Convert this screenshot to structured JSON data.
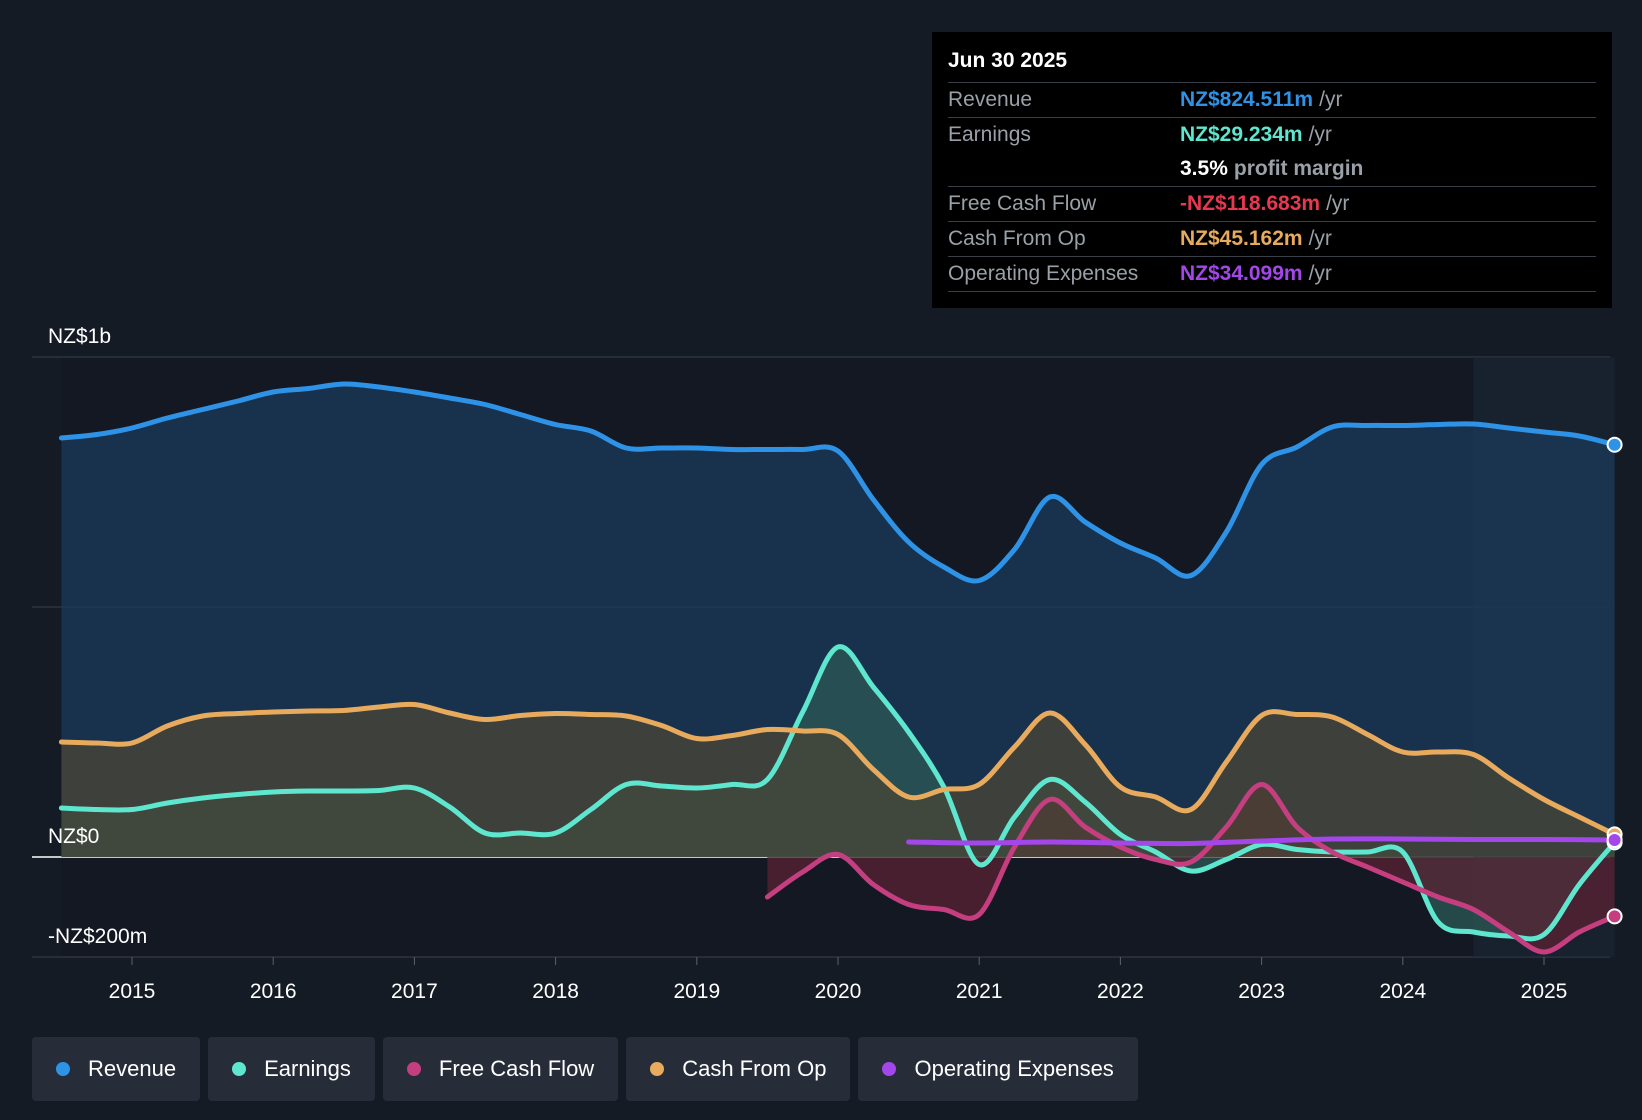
{
  "chart_data": {
    "type": "area",
    "title": "",
    "xlabel": "",
    "ylabel": "",
    "ylim": [
      -200,
      1000
    ],
    "y_axis_labels": [
      {
        "value": 1000,
        "label": "NZ$1b"
      },
      {
        "value": 0,
        "label": "NZ$0"
      },
      {
        "value": -200,
        "label": "-NZ$200m"
      }
    ],
    "x_ticks": [
      "2015",
      "2016",
      "2017",
      "2018",
      "2019",
      "2020",
      "2021",
      "2022",
      "2023",
      "2024",
      "2025"
    ],
    "xlim": [
      2014.25,
      2025.5
    ],
    "forecast_start": 2024.5,
    "series": [
      {
        "name": "Revenue",
        "color": "#2e93e6",
        "fill": "#1b3b5c",
        "points": [
          [
            2014.5,
            838
          ],
          [
            2014.75,
            845
          ],
          [
            2015.0,
            858
          ],
          [
            2015.25,
            878
          ],
          [
            2015.5,
            895
          ],
          [
            2015.75,
            912
          ],
          [
            2016.0,
            930
          ],
          [
            2016.25,
            937
          ],
          [
            2016.5,
            946
          ],
          [
            2016.75,
            940
          ],
          [
            2017.0,
            930
          ],
          [
            2017.25,
            918
          ],
          [
            2017.5,
            905
          ],
          [
            2017.75,
            885
          ],
          [
            2018.0,
            865
          ],
          [
            2018.25,
            852
          ],
          [
            2018.5,
            818
          ],
          [
            2018.75,
            818
          ],
          [
            2019.0,
            818
          ],
          [
            2019.25,
            815
          ],
          [
            2019.5,
            815
          ],
          [
            2019.75,
            815
          ],
          [
            2020.0,
            812
          ],
          [
            2020.25,
            715
          ],
          [
            2020.5,
            630
          ],
          [
            2020.75,
            580
          ],
          [
            2021.0,
            553
          ],
          [
            2021.25,
            615
          ],
          [
            2021.5,
            720
          ],
          [
            2021.75,
            670
          ],
          [
            2022.0,
            628
          ],
          [
            2022.25,
            598
          ],
          [
            2022.5,
            563
          ],
          [
            2022.75,
            650
          ],
          [
            2023.0,
            785
          ],
          [
            2023.25,
            820
          ],
          [
            2023.5,
            860
          ],
          [
            2023.75,
            863
          ],
          [
            2024.0,
            863
          ],
          [
            2024.25,
            865
          ],
          [
            2024.5,
            866
          ],
          [
            2024.75,
            858
          ],
          [
            2025.0,
            850
          ],
          [
            2025.25,
            842
          ],
          [
            2025.5,
            824.5
          ]
        ]
      },
      {
        "name": "Earnings",
        "color": "#5ee6cf",
        "fill": "#2c5a55",
        "points": [
          [
            2014.5,
            98
          ],
          [
            2014.75,
            95
          ],
          [
            2015.0,
            95
          ],
          [
            2015.25,
            108
          ],
          [
            2015.5,
            118
          ],
          [
            2015.75,
            125
          ],
          [
            2016.0,
            130
          ],
          [
            2016.25,
            132
          ],
          [
            2016.5,
            132
          ],
          [
            2016.75,
            133
          ],
          [
            2017.0,
            138
          ],
          [
            2017.25,
            100
          ],
          [
            2017.5,
            48
          ],
          [
            2017.75,
            48
          ],
          [
            2018.0,
            48
          ],
          [
            2018.25,
            95
          ],
          [
            2018.5,
            145
          ],
          [
            2018.75,
            142
          ],
          [
            2019.0,
            138
          ],
          [
            2019.25,
            145
          ],
          [
            2019.5,
            155
          ],
          [
            2019.75,
            290
          ],
          [
            2020.0,
            420
          ],
          [
            2020.25,
            340
          ],
          [
            2020.5,
            250
          ],
          [
            2020.75,
            140
          ],
          [
            2021.0,
            -15
          ],
          [
            2021.25,
            80
          ],
          [
            2021.5,
            155
          ],
          [
            2021.75,
            110
          ],
          [
            2022.0,
            45
          ],
          [
            2022.25,
            10
          ],
          [
            2022.5,
            -28
          ],
          [
            2022.75,
            -5
          ],
          [
            2023.0,
            25
          ],
          [
            2023.25,
            15
          ],
          [
            2023.5,
            10
          ],
          [
            2023.75,
            10
          ],
          [
            2024.0,
            10
          ],
          [
            2024.25,
            -130
          ],
          [
            2024.5,
            -150
          ],
          [
            2024.75,
            -158
          ],
          [
            2025.0,
            -155
          ],
          [
            2025.25,
            -55
          ],
          [
            2025.5,
            29.2
          ]
        ]
      },
      {
        "name": "Free Cash Flow",
        "color": "#c43e80",
        "fill": "#5a2233",
        "points": [
          [
            2019.5,
            -80
          ],
          [
            2019.75,
            -30
          ],
          [
            2020.0,
            5
          ],
          [
            2020.25,
            -55
          ],
          [
            2020.5,
            -95
          ],
          [
            2020.75,
            -105
          ],
          [
            2021.0,
            -115
          ],
          [
            2021.25,
            20
          ],
          [
            2021.5,
            115
          ],
          [
            2021.75,
            60
          ],
          [
            2022.0,
            20
          ],
          [
            2022.25,
            -5
          ],
          [
            2022.5,
            -10
          ],
          [
            2022.75,
            60
          ],
          [
            2023.0,
            145
          ],
          [
            2023.25,
            60
          ],
          [
            2023.5,
            10
          ],
          [
            2023.75,
            -20
          ],
          [
            2024.0,
            -50
          ],
          [
            2024.25,
            -80
          ],
          [
            2024.5,
            -105
          ],
          [
            2024.75,
            -150
          ],
          [
            2025.0,
            -190
          ],
          [
            2025.25,
            -150
          ],
          [
            2025.5,
            -118.7
          ]
        ]
      },
      {
        "name": "Cash From Op",
        "color": "#e8aa5c",
        "fill": "#4a4535",
        "points": [
          [
            2014.5,
            230
          ],
          [
            2014.75,
            228
          ],
          [
            2015.0,
            228
          ],
          [
            2015.25,
            262
          ],
          [
            2015.5,
            282
          ],
          [
            2015.75,
            287
          ],
          [
            2016.0,
            290
          ],
          [
            2016.25,
            292
          ],
          [
            2016.5,
            293
          ],
          [
            2016.75,
            300
          ],
          [
            2017.0,
            305
          ],
          [
            2017.25,
            288
          ],
          [
            2017.5,
            275
          ],
          [
            2017.75,
            283
          ],
          [
            2018.0,
            287
          ],
          [
            2018.25,
            285
          ],
          [
            2018.5,
            282
          ],
          [
            2018.75,
            263
          ],
          [
            2019.0,
            237
          ],
          [
            2019.25,
            243
          ],
          [
            2019.5,
            255
          ],
          [
            2019.75,
            252
          ],
          [
            2020.0,
            245
          ],
          [
            2020.25,
            175
          ],
          [
            2020.5,
            120
          ],
          [
            2020.75,
            135
          ],
          [
            2021.0,
            145
          ],
          [
            2021.25,
            220
          ],
          [
            2021.5,
            288
          ],
          [
            2021.75,
            225
          ],
          [
            2022.0,
            140
          ],
          [
            2022.25,
            120
          ],
          [
            2022.5,
            95
          ],
          [
            2022.75,
            190
          ],
          [
            2023.0,
            283
          ],
          [
            2023.25,
            285
          ],
          [
            2023.5,
            280
          ],
          [
            2023.75,
            245
          ],
          [
            2024.0,
            210
          ],
          [
            2024.25,
            210
          ],
          [
            2024.5,
            205
          ],
          [
            2024.75,
            158
          ],
          [
            2025.0,
            115
          ],
          [
            2025.25,
            80
          ],
          [
            2025.5,
            45.2
          ]
        ]
      },
      {
        "name": "Operating Expenses",
        "color": "#a447ea",
        "fill": "none",
        "points": [
          [
            2020.5,
            30
          ],
          [
            2021.0,
            28
          ],
          [
            2021.5,
            30
          ],
          [
            2022.0,
            28
          ],
          [
            2022.5,
            27
          ],
          [
            2023.0,
            32
          ],
          [
            2023.5,
            36
          ],
          [
            2024.0,
            36
          ],
          [
            2024.5,
            35
          ],
          [
            2025.0,
            35
          ],
          [
            2025.5,
            34.1
          ]
        ]
      }
    ]
  },
  "tooltip": {
    "date": "Jun 30 2025",
    "revenue_label": "Revenue",
    "revenue_value": "NZ$824.511m",
    "revenue_unit": "/yr",
    "earnings_label": "Earnings",
    "earnings_value": "NZ$29.234m",
    "earnings_unit": "/yr",
    "margin_value": "3.5%",
    "margin_text": "profit margin",
    "fcf_label": "Free Cash Flow",
    "fcf_value": "-NZ$118.683m",
    "fcf_unit": "/yr",
    "cfo_label": "Cash From Op",
    "cfo_value": "NZ$45.162m",
    "cfo_unit": "/yr",
    "opex_label": "Operating Expenses",
    "opex_value": "NZ$34.099m",
    "opex_unit": "/yr"
  },
  "legend": [
    {
      "label": "Revenue",
      "color": "#2e93e6"
    },
    {
      "label": "Earnings",
      "color": "#5ee6cf"
    },
    {
      "label": "Free Cash Flow",
      "color": "#c43e80"
    },
    {
      "label": "Cash From Op",
      "color": "#e8aa5c"
    },
    {
      "label": "Operating Expenses",
      "color": "#a447ea"
    }
  ]
}
